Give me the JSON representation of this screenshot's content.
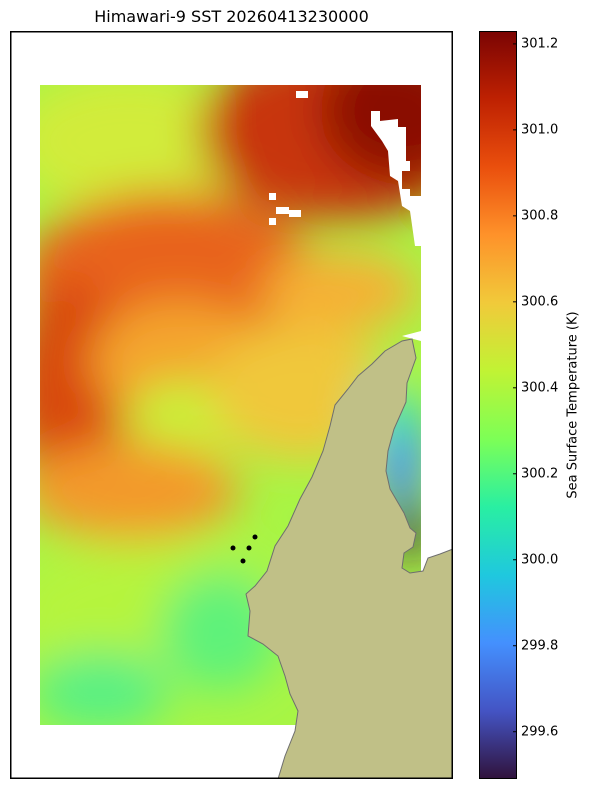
{
  "title": "Himawari-9 SST 20260413230000",
  "colorbar": {
    "label": "Sea Surface Temperature (K)",
    "vmin": 299.49,
    "vmax": 301.23,
    "ticks": [
      "301.2",
      "301.0",
      "300.8",
      "300.6",
      "300.4",
      "300.2",
      "300.0",
      "299.8",
      "299.6"
    ],
    "colormap": [
      "#30123b",
      "#4454c4",
      "#4490fe",
      "#1fc8de",
      "#29efa2",
      "#7dff56",
      "#c1f334",
      "#f1ca3a",
      "#fe922a",
      "#ea4f0d",
      "#be2102",
      "#7a0403"
    ]
  },
  "map": {
    "land_color": "#c0c087",
    "coast_color": "#6e6e6e",
    "station_markers": 4
  }
}
